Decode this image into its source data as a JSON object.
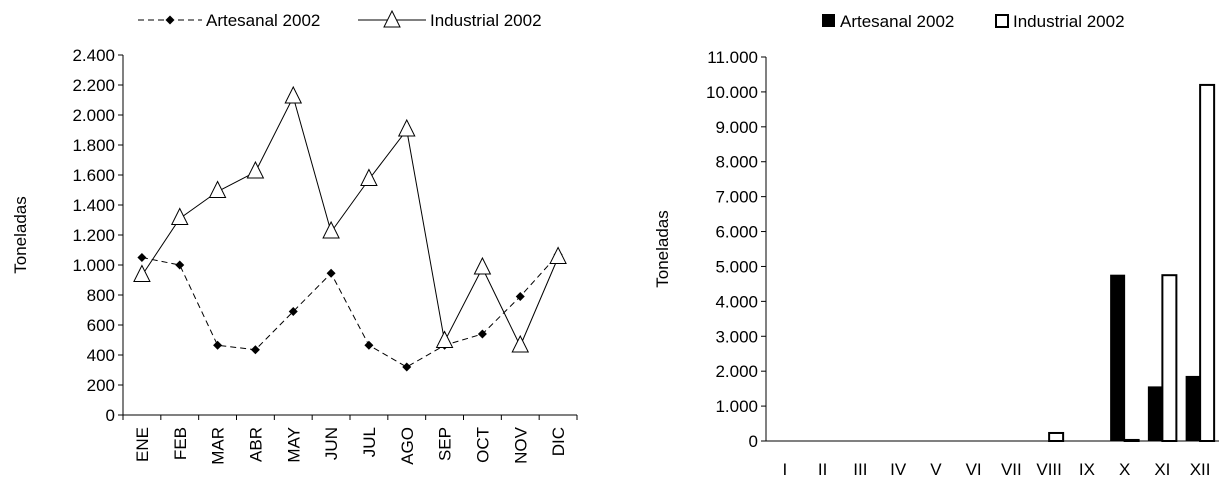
{
  "chart_data": [
    {
      "type": "line",
      "title": "",
      "ylabel": "Toneladas",
      "xlabel": "",
      "categories": [
        "ENE",
        "FEB",
        "MAR",
        "ABR",
        "MAY",
        "JUN",
        "JUL",
        "AGO",
        "SEP",
        "OCT",
        "NOV",
        "DIC"
      ],
      "ylim": [
        0,
        2400
      ],
      "yticks": [
        0,
        200,
        400,
        600,
        800,
        1000,
        1200,
        1400,
        1600,
        1800,
        2000,
        2200,
        2400
      ],
      "ytick_labels": [
        "0",
        "200",
        "400",
        "600",
        "800",
        "1.000",
        "1.200",
        "1.400",
        "1.600",
        "1.800",
        "2.000",
        "2.200",
        "2.400"
      ],
      "legend_position": "top",
      "grid": false,
      "series": [
        {
          "name": "Artesanal 2002",
          "style": "dashed",
          "marker": "diamond",
          "color": "#000000",
          "values": [
            1050,
            1000,
            465,
            435,
            690,
            945,
            465,
            320,
            465,
            540,
            790,
            1070
          ]
        },
        {
          "name": "Industrial 2002",
          "style": "solid",
          "marker": "triangle",
          "color": "#000000",
          "values": [
            930,
            1310,
            1490,
            1620,
            2120,
            1220,
            1570,
            1900,
            490,
            980,
            460,
            1050
          ]
        }
      ]
    },
    {
      "type": "bar",
      "title": "",
      "ylabel": "Toneladas",
      "xlabel": "",
      "categories": [
        "I",
        "II",
        "III",
        "IV",
        "V",
        "VI",
        "VII",
        "VIII",
        "IX",
        "X",
        "XI",
        "XII"
      ],
      "ylim": [
        0,
        11000
      ],
      "yticks": [
        0,
        1000,
        2000,
        3000,
        4000,
        5000,
        6000,
        7000,
        8000,
        9000,
        10000,
        11000
      ],
      "ytick_labels": [
        "0",
        "1.000",
        "2.000",
        "3.000",
        "4.000",
        "5.000",
        "6.000",
        "7.000",
        "8.000",
        "9.000",
        "10.000",
        "11.000"
      ],
      "legend_position": "top",
      "grid": false,
      "series": [
        {
          "name": "Artesanal 2002",
          "fill": "#000000",
          "values": [
            0,
            0,
            0,
            0,
            0,
            0,
            0,
            0,
            0,
            4750,
            1550,
            1850
          ]
        },
        {
          "name": "Industrial 2002",
          "fill": "#ffffff",
          "values": [
            0,
            0,
            0,
            0,
            0,
            0,
            0,
            230,
            0,
            30,
            4750,
            10200
          ]
        }
      ]
    }
  ]
}
